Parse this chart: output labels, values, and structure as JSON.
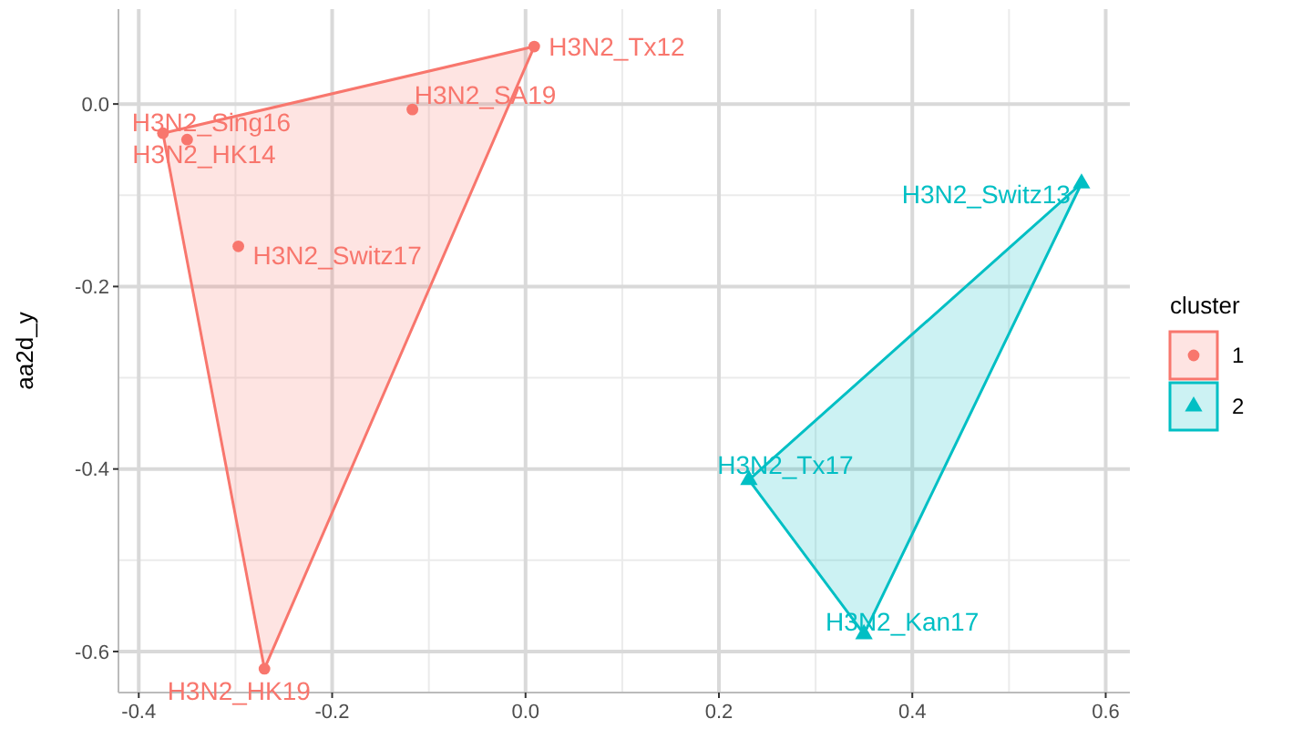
{
  "chart_data": {
    "type": "scatter",
    "ylabel": "aa2d_y",
    "legend_title": "cluster",
    "legend": "right",
    "grid": true,
    "xlim": [
      -0.421,
      0.625
    ],
    "ylim": [
      -0.645,
      0.104
    ],
    "xticks": [
      -0.4,
      -0.2,
      {
        "value": 0,
        "label": "0.0"
      },
      0.2,
      0.4,
      0.6
    ],
    "yticks": [
      -0.6,
      -0.4,
      -0.2,
      {
        "value": 0,
        "label": "0.0"
      }
    ],
    "series": [
      {
        "name": "1",
        "color": "#f8766d",
        "marker": "circle",
        "x": [
          -0.375,
          -0.35,
          -0.117,
          0.009,
          -0.297,
          -0.27
        ],
        "values": [
          -0.032,
          -0.039,
          -0.006,
          0.063,
          -0.156,
          -0.619
        ]
      },
      {
        "name": "2",
        "color": "#00bfc4",
        "marker": "triangle",
        "x": [
          0.575,
          0.231,
          0.35
        ],
        "values": [
          -0.087,
          -0.412,
          -0.581
        ]
      }
    ],
    "annotations": [
      {
        "text": "H3N2_Sing16",
        "x": -0.375,
        "y": -0.032
      },
      {
        "text": "H3N2_HK14",
        "x": -0.35,
        "y": -0.039
      },
      {
        "text": "H3N2_SA19",
        "x": -0.117,
        "y": -0.006
      },
      {
        "text": "H3N2_Tx12",
        "x": 0.009,
        "y": 0.063
      },
      {
        "text": "H3N2_Switz17",
        "x": -0.297,
        "y": -0.156
      },
      {
        "text": "H3N2_HK19",
        "x": -0.27,
        "y": -0.619
      },
      {
        "text": "H3N2_Switz13",
        "x": 0.575,
        "y": -0.087
      },
      {
        "text": "H3N2_Tx17",
        "x": 0.231,
        "y": -0.412
      },
      {
        "text": "H3N2_Kan17",
        "x": 0.35,
        "y": -0.581
      }
    ]
  }
}
